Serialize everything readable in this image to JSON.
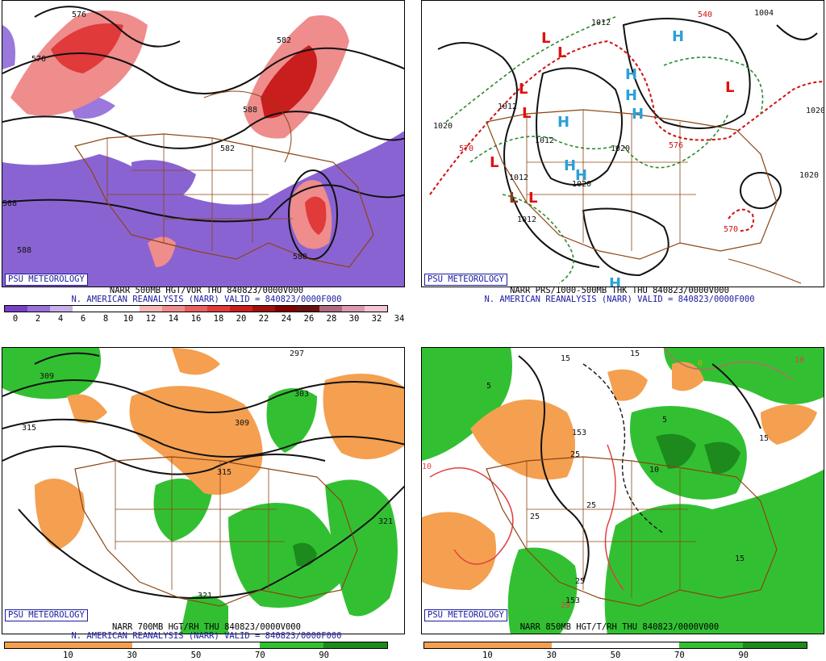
{
  "panels": [
    {
      "badge": "PSU METEOROLOGY",
      "title": "NARR 500MB HGT/VOR THU 840823/0000V000",
      "subtitle": "N. AMERICAN REANALYSIS (NARR) VALID = 840823/0000F000",
      "colorbar": {
        "colors": [
          "#7a3fc6",
          "#9a70d8",
          "#c7b0ea",
          "#ffffff",
          "#ffffff",
          "#ffffff",
          "#f4b8b8",
          "#ef8c8c",
          "#e86060",
          "#e03a3a",
          "#c81e1e",
          "#a01010",
          "#800000",
          "#6a1010",
          "#b06a80",
          "#d89ab0",
          "#f2c6d4"
        ],
        "ticks": [
          "0",
          "2",
          "4",
          "6",
          "8",
          "10",
          "12",
          "14",
          "16",
          "18",
          "20",
          "22",
          "24",
          "26",
          "28",
          "30",
          "32",
          "34"
        ]
      },
      "contour_labels": [
        "576",
        "582",
        "588",
        "582",
        "588",
        "588",
        "576",
        "588"
      ]
    },
    {
      "badge": "PSU METEOROLOGY",
      "title": "NARR PRS/1000-500MB THK THU 840823/0000V000",
      "subtitle": "N. AMERICAN REANALYSIS (NARR) VALID = 840823/0000F000",
      "contour_labels": [
        "1012",
        "1020",
        "1012",
        "1012",
        "1012",
        "1020",
        "1020",
        "1020",
        "1004",
        "1012",
        "1020",
        "570",
        "576",
        "570",
        "540"
      ],
      "high_symbol": "H",
      "low_symbol": "L"
    },
    {
      "badge": "PSU METEOROLOGY",
      "title": "NARR 700MB HGT/RH THU 840823/0000V000",
      "subtitle": "N. AMERICAN REANALYSIS (NARR) VALID = 840823/0000F000",
      "colorbar": {
        "colors": [
          "#f4a050",
          "#f4a050",
          "#ffffff",
          "#ffffff",
          "#32c032",
          "#1c8a1c"
        ],
        "ticks": [
          "10",
          "30",
          "50",
          "70",
          "90"
        ]
      },
      "contour_labels": [
        "297",
        "309",
        "303",
        "315",
        "309",
        "315",
        "321",
        "321"
      ]
    },
    {
      "badge": "PSU METEOROLOGY",
      "title": "NARR 850MB HGT/T/RH THU 840823/0000V000",
      "subtitle": "",
      "colorbar": {
        "colors": [
          "#f4a050",
          "#f4a050",
          "#ffffff",
          "#ffffff",
          "#32c032",
          "#1c8a1c"
        ],
        "ticks": [
          "10",
          "30",
          "50",
          "70",
          "90"
        ]
      },
      "contour_labels": [
        "15",
        "5",
        "15",
        "5",
        "15",
        "25",
        "25",
        "25",
        "10",
        "15",
        "25",
        "20",
        "10",
        "153",
        "153",
        "10",
        "0"
      ]
    }
  ]
}
